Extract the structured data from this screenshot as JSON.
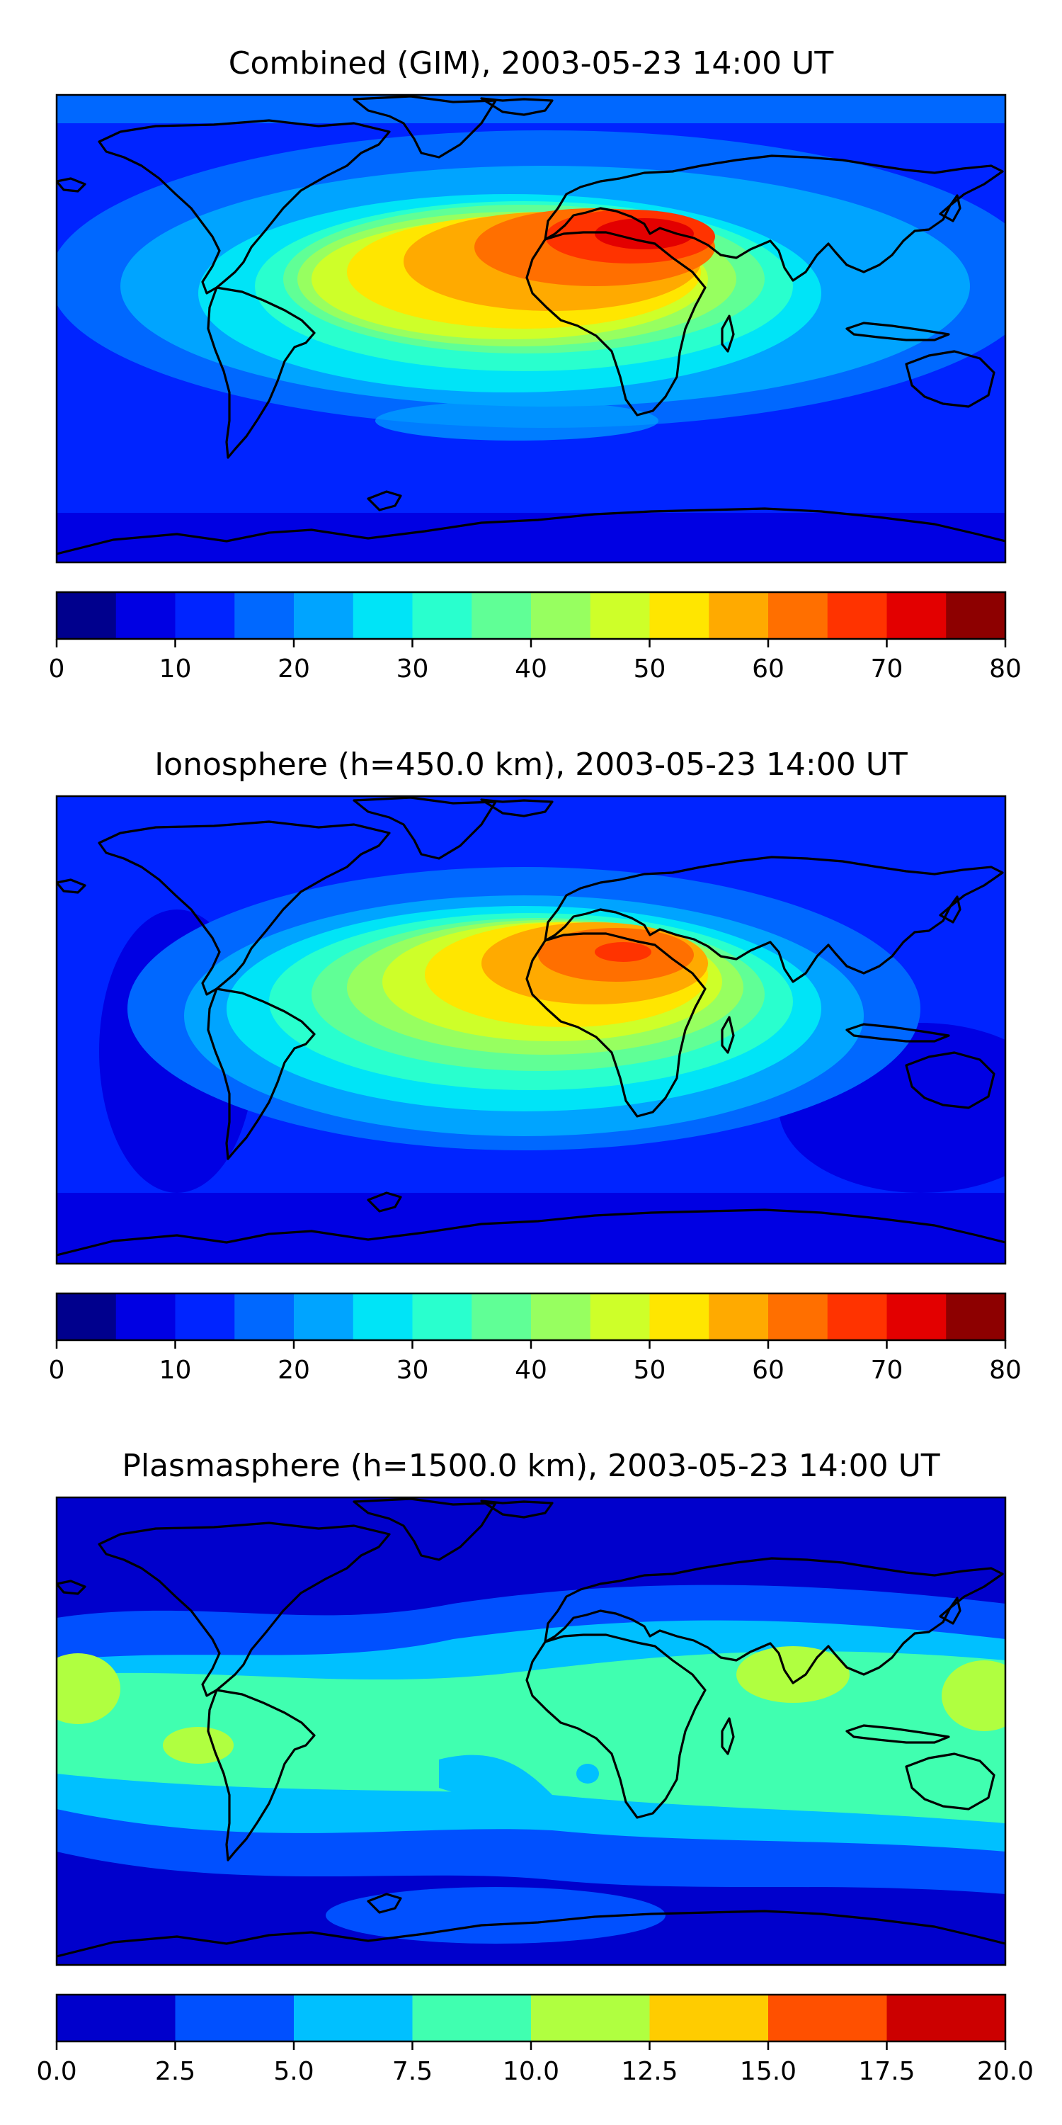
{
  "chart_data": [
    {
      "type": "heatmap",
      "title": "Combined (GIM), 2003-05-23 14:00 UT",
      "colorbar": {
        "levels": [
          0,
          5,
          10,
          15,
          20,
          25,
          30,
          35,
          40,
          45,
          50,
          55,
          60,
          65,
          70,
          75,
          80
        ],
        "colors": [
          "#00008d",
          "#0000e3",
          "#0024ff",
          "#0068ff",
          "#00a4ff",
          "#00e4f7",
          "#29ffce",
          "#60ff96",
          "#97ff60",
          "#ceff29",
          "#ffe600",
          "#ffaa00",
          "#ff6f00",
          "#ff3300",
          "#e30000",
          "#8d0000"
        ],
        "tick_values": [
          0,
          10,
          20,
          30,
          40,
          50,
          60,
          70,
          80
        ],
        "tick_labels": [
          "0",
          "10",
          "20",
          "30",
          "40",
          "50",
          "60",
          "70",
          "80"
        ]
      }
    },
    {
      "type": "heatmap",
      "title": "Ionosphere  (h=450.0 km), 2003-05-23 14:00 UT",
      "colorbar": {
        "levels": [
          0,
          5,
          10,
          15,
          20,
          25,
          30,
          35,
          40,
          45,
          50,
          55,
          60,
          65,
          70,
          75,
          80
        ],
        "colors": [
          "#00008d",
          "#0000e3",
          "#0024ff",
          "#0068ff",
          "#00a4ff",
          "#00e4f7",
          "#29ffce",
          "#60ff96",
          "#97ff60",
          "#ceff29",
          "#ffe600",
          "#ffaa00",
          "#ff6f00",
          "#ff3300",
          "#e30000",
          "#8d0000"
        ],
        "tick_values": [
          0,
          10,
          20,
          30,
          40,
          50,
          60,
          70,
          80
        ],
        "tick_labels": [
          "0",
          "10",
          "20",
          "30",
          "40",
          "50",
          "60",
          "70",
          "80"
        ]
      }
    },
    {
      "type": "heatmap",
      "title": "Plasmasphere (h=1500.0 km), 2003-05-23 14:00 UT",
      "colorbar": {
        "levels": [
          0.0,
          2.5,
          5.0,
          7.5,
          10.0,
          12.5,
          15.0,
          17.5,
          20.0
        ],
        "colors": [
          "#0000cc",
          "#0050ff",
          "#00c0ff",
          "#40ffb0",
          "#b0ff40",
          "#ffcc00",
          "#ff5000",
          "#cc0000"
        ],
        "tick_values": [
          0.0,
          2.5,
          5.0,
          7.5,
          10.0,
          12.5,
          15.0,
          17.5,
          20.0
        ],
        "tick_labels": [
          "0.0",
          "2.5",
          "5.0",
          "7.5",
          "10.0",
          "12.5",
          "15.0",
          "17.5",
          "20.0"
        ]
      }
    }
  ]
}
